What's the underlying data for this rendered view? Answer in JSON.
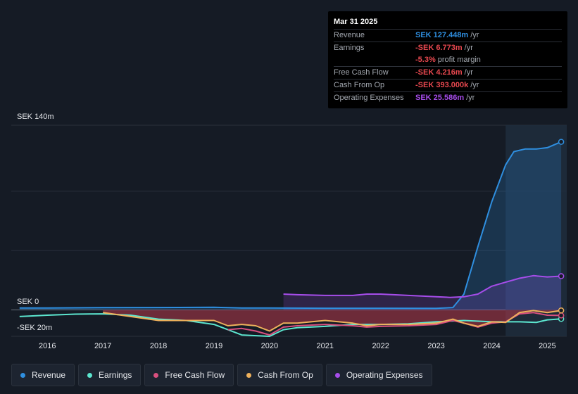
{
  "tooltip": {
    "date": "Mar 31 2025",
    "rows": [
      {
        "name": "Revenue",
        "value": "SEK 127.448m",
        "unit": "/yr",
        "color": "#2f8fe0"
      },
      {
        "name": "Earnings",
        "value": "-SEK 6.773m",
        "unit": "/yr",
        "color": "#e8484f"
      },
      {
        "name": "",
        "value": "-5.3%",
        "unit": "profit margin",
        "color": "#e8484f"
      },
      {
        "name": "Free Cash Flow",
        "value": "-SEK 4.216m",
        "unit": "/yr",
        "color": "#e8484f"
      },
      {
        "name": "Cash From Op",
        "value": "-SEK 393.000k",
        "unit": "/yr",
        "color": "#e8484f"
      },
      {
        "name": "Operating Expenses",
        "value": "SEK 25.586m",
        "unit": "/yr",
        "color": "#a64dea"
      }
    ]
  },
  "axis": {
    "top_label": "SEK 140m",
    "zero_label": "SEK 0",
    "bottom_label": "-SEK 20m"
  },
  "legend": [
    {
      "label": "Revenue",
      "color": "#2f8fe0"
    },
    {
      "label": "Earnings",
      "color": "#5ce6cf"
    },
    {
      "label": "Free Cash Flow",
      "color": "#d9507f"
    },
    {
      "label": "Cash From Op",
      "color": "#eeb15c"
    },
    {
      "label": "Operating Expenses",
      "color": "#a64dea"
    }
  ],
  "chart_data": {
    "type": "line",
    "x_ticks": [
      "2016",
      "2017",
      "2018",
      "2019",
      "2020",
      "2021",
      "2022",
      "2023",
      "2024",
      "2025"
    ],
    "ylim": [
      -20,
      140
    ],
    "y_unit": "SEK m",
    "grid": true,
    "highlight_from": 2024.25,
    "series": [
      {
        "name": "Revenue",
        "color": "#2f8fe0",
        "fill": true,
        "points": [
          [
            2015.5,
            1.5
          ],
          [
            2016,
            1.5
          ],
          [
            2017,
            1.7
          ],
          [
            2018,
            1.8
          ],
          [
            2019,
            2.0
          ],
          [
            2019.5,
            1.5
          ],
          [
            2020,
            1.5
          ],
          [
            2021,
            1.3
          ],
          [
            2022,
            1.3
          ],
          [
            2023,
            1.2
          ],
          [
            2023.3,
            1.8
          ],
          [
            2023.5,
            12
          ],
          [
            2023.75,
            48
          ],
          [
            2024,
            82
          ],
          [
            2024.25,
            110
          ],
          [
            2024.4,
            120
          ],
          [
            2024.6,
            122
          ],
          [
            2024.8,
            122
          ],
          [
            2025,
            123
          ],
          [
            2025.25,
            127.4
          ]
        ]
      },
      {
        "name": "Earnings",
        "color": "#5ce6cf",
        "fill": false,
        "points": [
          [
            2015.5,
            -5
          ],
          [
            2016,
            -4
          ],
          [
            2016.5,
            -3.2
          ],
          [
            2017,
            -3
          ],
          [
            2017.5,
            -4
          ],
          [
            2018,
            -7
          ],
          [
            2018.5,
            -8
          ],
          [
            2019,
            -11
          ],
          [
            2019.5,
            -19
          ],
          [
            2020,
            -20
          ],
          [
            2020.25,
            -15
          ],
          [
            2020.5,
            -13.5
          ],
          [
            2021,
            -12.5
          ],
          [
            2021.5,
            -11
          ],
          [
            2022,
            -11
          ],
          [
            2022.5,
            -10.5
          ],
          [
            2023,
            -9
          ],
          [
            2023.5,
            -8
          ],
          [
            2024,
            -9
          ],
          [
            2024.5,
            -9
          ],
          [
            2024.8,
            -9.5
          ],
          [
            2025,
            -7.5
          ],
          [
            2025.25,
            -6.8
          ]
        ]
      },
      {
        "name": "Free Cash Flow",
        "color": "#d9507f",
        "fill": false,
        "points": [
          [
            2019.25,
            -15
          ],
          [
            2019.5,
            -14
          ],
          [
            2019.75,
            -16
          ],
          [
            2020,
            -19
          ],
          [
            2020.25,
            -13
          ],
          [
            2020.5,
            -12
          ],
          [
            2021,
            -11
          ],
          [
            2021.5,
            -12
          ],
          [
            2021.75,
            -13
          ],
          [
            2022,
            -12.5
          ],
          [
            2022.5,
            -12
          ],
          [
            2023,
            -11
          ],
          [
            2023.3,
            -8
          ],
          [
            2023.5,
            -10
          ],
          [
            2023.75,
            -13
          ],
          [
            2024,
            -10
          ],
          [
            2024.25,
            -9
          ],
          [
            2024.5,
            -3
          ],
          [
            2024.75,
            -2
          ],
          [
            2025,
            -4
          ],
          [
            2025.25,
            -4.2
          ]
        ]
      },
      {
        "name": "Cash From Op",
        "color": "#eeb15c",
        "fill": true,
        "points": [
          [
            2017,
            -2
          ],
          [
            2017.5,
            -5
          ],
          [
            2018,
            -8
          ],
          [
            2018.5,
            -8
          ],
          [
            2019,
            -8
          ],
          [
            2019.25,
            -12
          ],
          [
            2019.5,
            -11
          ],
          [
            2019.75,
            -12
          ],
          [
            2020,
            -16
          ],
          [
            2020.25,
            -10
          ],
          [
            2020.5,
            -10
          ],
          [
            2021,
            -8
          ],
          [
            2021.5,
            -10
          ],
          [
            2021.75,
            -12
          ],
          [
            2022,
            -11
          ],
          [
            2022.5,
            -11
          ],
          [
            2023,
            -10
          ],
          [
            2023.3,
            -7
          ],
          [
            2023.5,
            -10
          ],
          [
            2023.75,
            -12.5
          ],
          [
            2024,
            -9
          ],
          [
            2024.25,
            -9.5
          ],
          [
            2024.5,
            -2
          ],
          [
            2024.75,
            -0.5
          ],
          [
            2025,
            -2
          ],
          [
            2025.25,
            -0.4
          ]
        ]
      },
      {
        "name": "Operating Expenses",
        "color": "#a64dea",
        "fill": true,
        "points": [
          [
            2020.25,
            12
          ],
          [
            2020.5,
            11.5
          ],
          [
            2021,
            11
          ],
          [
            2021.5,
            11
          ],
          [
            2021.75,
            12
          ],
          [
            2022,
            12
          ],
          [
            2022.5,
            11
          ],
          [
            2023,
            10
          ],
          [
            2023.25,
            9.5
          ],
          [
            2023.5,
            10
          ],
          [
            2023.75,
            12
          ],
          [
            2024,
            18
          ],
          [
            2024.25,
            21
          ],
          [
            2024.5,
            24
          ],
          [
            2024.75,
            26
          ],
          [
            2025,
            25
          ],
          [
            2025.25,
            25.6
          ]
        ]
      }
    ]
  }
}
